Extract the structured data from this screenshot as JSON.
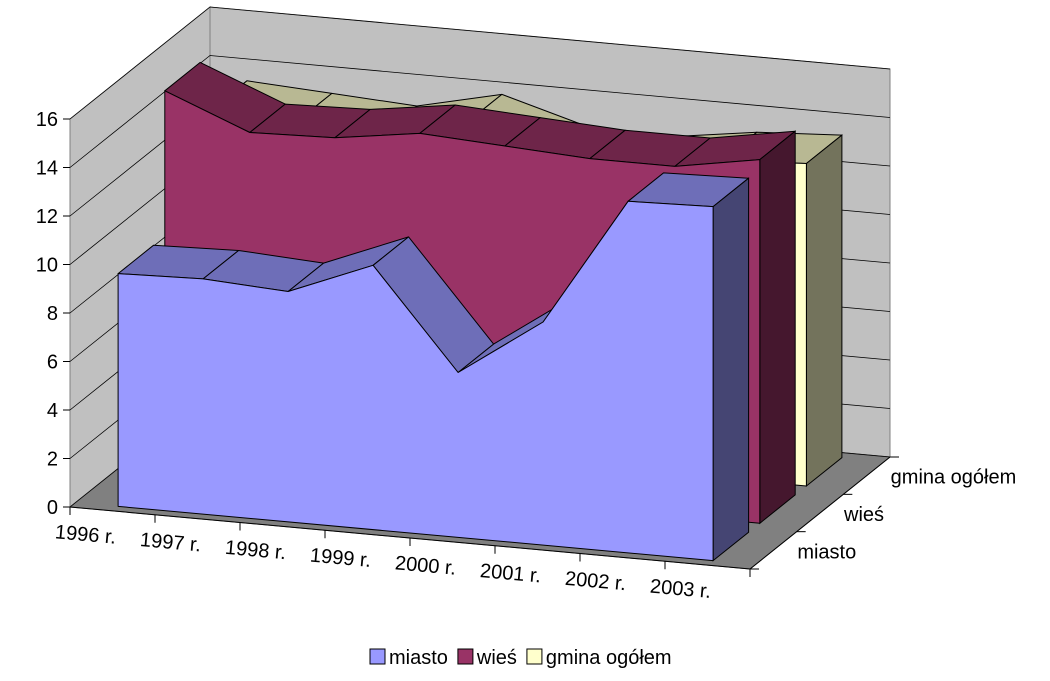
{
  "chart_data": {
    "type": "area",
    "style": "3d",
    "categories": [
      "1996 r.",
      "1997 r.",
      "1998 r.",
      "1999 r.",
      "2000 r.",
      "2001 r.",
      "2002 r.",
      "2003 r."
    ],
    "series": [
      {
        "name": "miasto",
        "color": "#9999ff",
        "values": [
          9.6,
          9.7,
          9.5,
          10.9,
          6.8,
          9.2,
          14.5,
          14.6
        ]
      },
      {
        "name": "wieś",
        "color": "#993366",
        "values": [
          15.6,
          14.2,
          14.3,
          14.8,
          14.6,
          14.4,
          14.4,
          15.0
        ]
      },
      {
        "name": "gmina ogółem",
        "color": "#ffffcc",
        "values": [
          13.3,
          13.1,
          12.9,
          13.7,
          12.7,
          12.6,
          13.1,
          13.3
        ]
      }
    ],
    "y_ticks": [
      "0",
      "2",
      "4",
      "6",
      "8",
      "10",
      "12",
      "14",
      "16"
    ],
    "depth_labels": [
      "miasto",
      "wieś",
      "gmina ogółem"
    ],
    "ylim": [
      0,
      16
    ],
    "grid": true,
    "legend_position": "bottom"
  }
}
